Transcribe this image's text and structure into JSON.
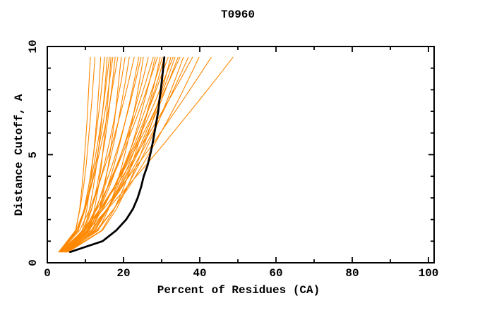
{
  "chart_data": {
    "type": "line",
    "title": "T0960",
    "xlabel": "Percent of Residues (CA)",
    "ylabel": "Distance Cutoff, A",
    "xlim": [
      0,
      101.5
    ],
    "ylim": [
      0,
      10
    ],
    "x_major_ticks": [
      0,
      20,
      40,
      60,
      80,
      100
    ],
    "x_minor_step": 10,
    "y_major_ticks": [
      0,
      5,
      10
    ],
    "y_minor_step": 1,
    "grid": false,
    "legend": "none",
    "colors": {
      "predictions": "#ff8800",
      "highlight": "#000000",
      "frame": "#000000",
      "background": "#ffffff"
    },
    "highlight_series": {
      "name": "highlighted-model",
      "cutoffs": [
        0.5,
        1.0,
        1.5,
        2.0,
        2.5,
        3.0,
        3.5,
        4.0,
        4.5,
        5.0,
        5.5,
        6.0,
        6.5,
        7.0,
        7.5,
        8.0,
        8.5,
        9.0,
        9.5
      ],
      "percents": [
        6.0,
        14.5,
        18.1,
        20.7,
        22.5,
        23.7,
        24.6,
        25.3,
        26.3,
        27.0,
        27.6,
        28.1,
        28.6,
        29.1,
        29.4,
        29.8,
        30.1,
        30.4,
        30.7
      ]
    },
    "prediction_series": {
      "name": "predicted-models",
      "cutoffs": [
        0.5,
        1.5,
        2.5,
        3.5,
        4.5,
        5.5,
        6.5,
        7.5,
        8.5,
        9.5
      ],
      "curves": [
        [
          3.5,
          7.5,
          8.5,
          9.1,
          9.6,
          10.0,
          10.4,
          10.7,
          11.0,
          11.3
        ],
        [
          3.0,
          7.4,
          8.6,
          9.5,
          10.2,
          10.7,
          11.2,
          11.7,
          12.1,
          12.5
        ],
        [
          4.0,
          9.2,
          10.4,
          11.2,
          11.8,
          12.4,
          12.9,
          13.3,
          13.7,
          14.0
        ],
        [
          3.2,
          8.1,
          9.7,
          10.8,
          11.7,
          12.5,
          13.2,
          13.9,
          14.5,
          15.0
        ],
        [
          4.5,
          9.7,
          11.1,
          12.1,
          12.9,
          13.6,
          14.2,
          14.8,
          15.3,
          15.7
        ],
        [
          3.0,
          7.9,
          9.8,
          11.1,
          12.2,
          13.2,
          14.1,
          14.9,
          15.6,
          16.3
        ],
        [
          5.0,
          11.0,
          12.4,
          13.4,
          14.2,
          14.8,
          15.4,
          15.9,
          16.3,
          16.7
        ],
        [
          3.5,
          8.1,
          10.0,
          11.4,
          12.6,
          13.7,
          14.7,
          15.6,
          16.4,
          17.2
        ],
        [
          4.2,
          9.8,
          11.7,
          13.0,
          14.0,
          15.0,
          15.8,
          16.5,
          17.2,
          17.8
        ],
        [
          3.0,
          7.6,
          9.8,
          11.5,
          12.9,
          14.2,
          15.4,
          16.5,
          17.5,
          18.5
        ],
        [
          5.5,
          11.9,
          13.7,
          15.0,
          16.0,
          16.8,
          17.6,
          18.2,
          18.8,
          19.4
        ],
        [
          3.8,
          9.3,
          11.6,
          13.4,
          14.9,
          16.2,
          17.4,
          18.4,
          19.5,
          20.4
        ],
        [
          4.0,
          10.5,
          12.9,
          14.7,
          16.1,
          17.4,
          18.6,
          19.6,
          20.6,
          21.5
        ],
        [
          3.2,
          8.5,
          11.2,
          13.3,
          15.2,
          17.0,
          18.6,
          20.1,
          21.5,
          22.8
        ],
        [
          4.5,
          11.0,
          13.7,
          15.8,
          17.5,
          19.0,
          20.4,
          21.7,
          22.9,
          24.0
        ],
        [
          3.5,
          9.8,
          12.7,
          15.0,
          17.0,
          18.8,
          20.4,
          21.9,
          23.3,
          24.6
        ],
        [
          5.0,
          13.4,
          16.1,
          18.0,
          19.6,
          21.0,
          22.2,
          23.3,
          24.3,
          25.2
        ],
        [
          4.0,
          10.7,
          13.8,
          16.3,
          18.4,
          20.3,
          22.0,
          23.6,
          25.1,
          26.5
        ],
        [
          3.0,
          9.6,
          13.1,
          15.8,
          18.2,
          20.4,
          22.4,
          24.3,
          26.1,
          27.8
        ],
        [
          4.8,
          12.6,
          15.9,
          18.4,
          20.5,
          22.3,
          24.0,
          25.5,
          27.0,
          28.3
        ],
        [
          3.5,
          9.6,
          13.1,
          15.9,
          18.5,
          20.8,
          23.0,
          25.1,
          27.0,
          28.9
        ],
        [
          5.2,
          14.3,
          17.6,
          20.1,
          22.1,
          23.9,
          25.5,
          27.0,
          28.4,
          29.6
        ],
        [
          4.0,
          11.0,
          14.6,
          17.5,
          20.1,
          22.4,
          24.5,
          26.5,
          28.4,
          30.2
        ],
        [
          4.5,
          12.3,
          15.9,
          18.8,
          21.3,
          23.5,
          25.5,
          27.3,
          29.1,
          30.7
        ],
        [
          3.8,
          10.5,
          14.3,
          17.5,
          20.3,
          22.9,
          25.2,
          27.5,
          29.6,
          31.7
        ],
        [
          5.5,
          14.5,
          18.2,
          21.0,
          23.4,
          25.5,
          27.5,
          29.2,
          30.9,
          32.4
        ],
        [
          4.2,
          10.4,
          14.3,
          17.6,
          20.5,
          23.3,
          25.9,
          28.4,
          30.7,
          33.0
        ],
        [
          3.5,
          11.5,
          15.7,
          19.0,
          21.9,
          24.6,
          27.0,
          29.3,
          31.5,
          33.5
        ],
        [
          4.8,
          11.9,
          15.9,
          19.3,
          22.2,
          25.0,
          27.5,
          29.9,
          32.1,
          34.3
        ],
        [
          4.0,
          9.9,
          13.9,
          17.5,
          20.8,
          23.8,
          26.7,
          29.5,
          32.2,
          34.8
        ],
        [
          5.0,
          13.2,
          17.5,
          20.9,
          23.9,
          26.6,
          29.1,
          31.4,
          33.6,
          35.7
        ],
        [
          4.5,
          11.5,
          15.8,
          19.6,
          22.9,
          26.0,
          29.0,
          31.8,
          34.4,
          37.0
        ],
        [
          3.5,
          9.5,
          13.9,
          17.9,
          21.6,
          25.1,
          28.5,
          31.8,
          35.0,
          38.1
        ],
        [
          5.5,
          12.9,
          17.5,
          21.4,
          24.9,
          28.2,
          31.3,
          34.3,
          37.1,
          39.8
        ],
        [
          4.0,
          10.0,
          14.8,
          19.3,
          23.6,
          27.7,
          31.6,
          35.5,
          39.3,
          43.0
        ],
        [
          4.5,
          10.6,
          15.9,
          20.9,
          25.8,
          30.6,
          35.2,
          39.8,
          44.3,
          48.7
        ]
      ]
    }
  }
}
